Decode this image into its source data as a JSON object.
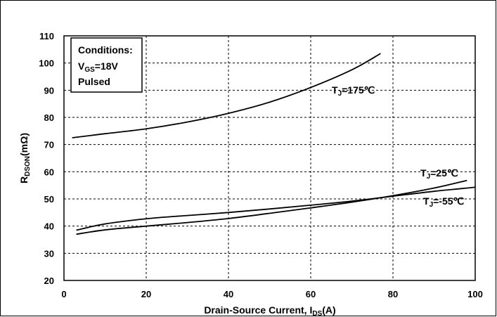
{
  "chart_data": {
    "type": "line",
    "xlabel": {
      "main": "Drain-Source Current, I",
      "sub": "DS",
      "tail": "(A)"
    },
    "ylabel": {
      "main": "R",
      "sub": "DSON",
      "tail": "(mΩ)"
    },
    "xlim": [
      0,
      100
    ],
    "ylim": [
      20,
      110
    ],
    "xticks": [
      0,
      20,
      40,
      60,
      80,
      100
    ],
    "yticks": [
      20,
      30,
      40,
      50,
      60,
      70,
      80,
      90,
      100,
      110
    ],
    "grid": true,
    "conditions": {
      "title": "Conditions:",
      "vgs_main": "V",
      "vgs_sub": "GS",
      "vgs_tail": "=18V",
      "line3": "Pulsed"
    },
    "series": [
      {
        "name": "TJ=175°C",
        "label": {
          "main": "T",
          "sub": "J",
          "tail": "=175℃"
        },
        "points": [
          [
            2,
            72.5
          ],
          [
            10,
            74
          ],
          [
            20,
            75.8
          ],
          [
            30,
            78.3
          ],
          [
            40,
            81.5
          ],
          [
            50,
            85.6
          ],
          [
            60,
            91
          ],
          [
            70,
            97.5
          ],
          [
            77,
            103.5
          ]
        ]
      },
      {
        "name": "TJ=25°C",
        "label": {
          "main": "T",
          "sub": "J",
          "tail": "=25℃"
        },
        "points": [
          [
            3,
            37
          ],
          [
            10,
            38.6
          ],
          [
            20,
            40
          ],
          [
            30,
            41.3
          ],
          [
            40,
            42.8
          ],
          [
            50,
            44.7
          ],
          [
            60,
            46.7
          ],
          [
            70,
            48.8
          ],
          [
            80,
            51.2
          ],
          [
            90,
            54
          ],
          [
            98,
            56.8
          ]
        ]
      },
      {
        "name": "TJ=-55°C",
        "label": {
          "main": "T",
          "sub": "J",
          "tail": "=-55℃"
        },
        "points": [
          [
            3,
            38.5
          ],
          [
            10,
            40.8
          ],
          [
            20,
            42.7
          ],
          [
            30,
            43.9
          ],
          [
            40,
            45
          ],
          [
            50,
            46.3
          ],
          [
            60,
            47.7
          ],
          [
            70,
            49.2
          ],
          [
            80,
            51
          ],
          [
            90,
            52.8
          ],
          [
            100,
            54.3
          ]
        ]
      }
    ]
  }
}
